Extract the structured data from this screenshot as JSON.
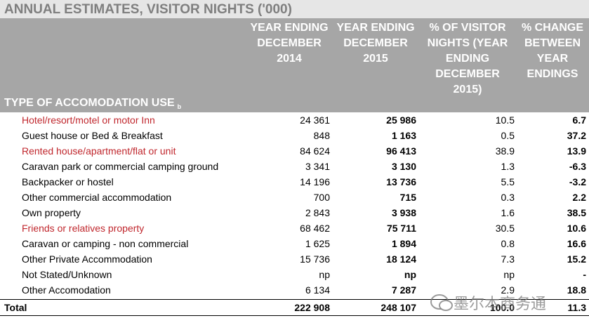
{
  "title": "ANNUAL ESTIMATES, VISITOR NIGHTS ('000)",
  "table": {
    "row_header": "TYPE OF ACCOMODATION USE",
    "row_header_note": "b",
    "columns": [
      "YEAR ENDING DECEMBER 2014",
      "YEAR ENDING DECEMBER 2015",
      "% OF VISITOR NIGHTS (YEAR ENDING DECEMBER 2015)",
      "% CHANGE BETWEEN YEAR ENDINGS"
    ],
    "bold_columns": [
      false,
      true,
      false,
      true
    ],
    "rows": [
      {
        "label": "Hotel/resort/motel or motor Inn",
        "color": "#c0272d",
        "values": [
          "24 361",
          "25 986",
          "10.5",
          "6.7"
        ]
      },
      {
        "label": "Guest house or Bed & Breakfast",
        "values": [
          "848",
          "1 163",
          "0.5",
          "37.2"
        ]
      },
      {
        "label": "Rented house/apartment/flat or unit",
        "color": "#c0272d",
        "values": [
          "84 624",
          "96 413",
          "38.9",
          "13.9"
        ]
      },
      {
        "label": "Caravan park or commercial camping ground",
        "values": [
          "3 341",
          "3 130",
          "1.3",
          "-6.3"
        ]
      },
      {
        "label": "Backpacker or hostel",
        "values": [
          "14 196",
          "13 736",
          "5.5",
          "-3.2"
        ]
      },
      {
        "label": "Other commercial accommodation",
        "values": [
          "700",
          "715",
          "0.3",
          "2.2"
        ]
      },
      {
        "label": "Own property",
        "values": [
          "2 843",
          "3 938",
          "1.6",
          "38.5"
        ]
      },
      {
        "label": "Friends or relatives property",
        "color": "#c0272d",
        "values": [
          "68 462",
          "75 711",
          "30.5",
          "10.6"
        ]
      },
      {
        "label": "Caravan or camping - non commercial",
        "values": [
          "1 625",
          "1 894",
          "0.8",
          "16.6"
        ]
      },
      {
        "label": "Other Private Accommodation",
        "values": [
          "15 736",
          "18 124",
          "7.3",
          "15.2"
        ]
      },
      {
        "label": "Not Stated/Unknown",
        "values": [
          "np",
          "np",
          "np",
          "-"
        ]
      },
      {
        "label": "Other Accomodation",
        "values": [
          "6 134",
          "7 287",
          "2.9",
          "18.8"
        ]
      }
    ],
    "total": {
      "label": "Total",
      "values": [
        "222 908",
        "248 107",
        "100.0",
        "11.3"
      ]
    }
  },
  "watermark": "墨尔本商务通"
}
